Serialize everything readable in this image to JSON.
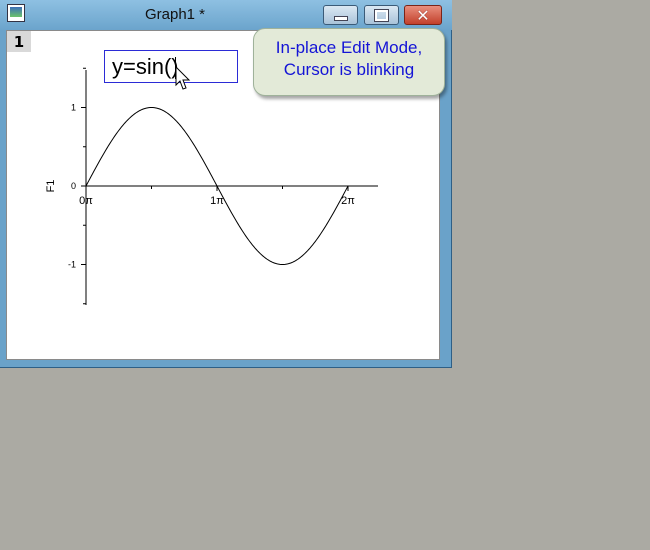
{
  "window": {
    "title": "Graph1 *",
    "close_glyph": "✕",
    "icons": [
      "graph-app-icon",
      "minimize-icon",
      "maximize-icon",
      "close-icon"
    ]
  },
  "layer": {
    "label": "1"
  },
  "edit_box": {
    "value": "y=sin()"
  },
  "callout": {
    "line1": "In-place Edit Mode,",
    "line2": "Cursor is blinking"
  },
  "colors": {
    "callout_text": "#1414d6",
    "edit_border": "#2b2bd6",
    "callout_bg": "#e3ead8"
  },
  "chart_data": {
    "type": "line",
    "title": "",
    "xlabel": "",
    "ylabel": "F1",
    "x_ticks": [
      "0π",
      "1π",
      "2π"
    ],
    "y_ticks": [
      "1",
      "0",
      "-1"
    ],
    "xlim": [
      0,
      6.2832
    ],
    "ylim": [
      -1.5,
      1.5
    ],
    "series": [
      {
        "function": "sin(x)",
        "x": [
          0,
          0.785,
          1.571,
          2.356,
          3.1416,
          3.927,
          4.712,
          5.498,
          6.2832
        ],
        "values": [
          0,
          0.707,
          1,
          0.707,
          0,
          -0.707,
          -1,
          -0.707,
          0
        ]
      }
    ]
  }
}
